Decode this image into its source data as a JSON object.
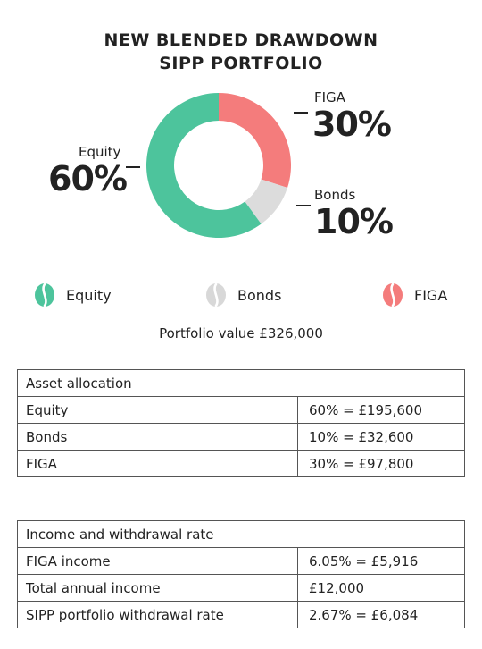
{
  "title_line1": "NEW BLENDED DRAWDOWN",
  "title_line2": "SIPP PORTFOLIO",
  "chart_data": {
    "type": "pie",
    "title": "NEW BLENDED DRAWDOWN SIPP PORTFOLIO",
    "donut": true,
    "slices": [
      {
        "label": "Equity",
        "value": 60,
        "display": "60%",
        "color": "#4dc49c"
      },
      {
        "label": "Bonds",
        "value": 10,
        "display": "10%",
        "color": "#dcdcdc"
      },
      {
        "label": "FIGA",
        "value": 30,
        "display": "30%",
        "color": "#f47c7c"
      }
    ]
  },
  "legend": [
    {
      "label": "Equity",
      "color": "#4dc49c",
      "icon": "bean-icon"
    },
    {
      "label": "Bonds",
      "color": "#d8d8d8",
      "icon": "bean-icon"
    },
    {
      "label": "FIGA",
      "color": "#f47c7c",
      "icon": "bean-icon"
    }
  ],
  "portfolio_value": "Portfolio value £326,000",
  "asset_table": {
    "header": "Asset allocation",
    "rows": [
      {
        "name": "Equity",
        "value": "60% = £195,600"
      },
      {
        "name": "Bonds",
        "value": "10% = £32,600"
      },
      {
        "name": "FIGA",
        "value": "30% = £97,800"
      }
    ]
  },
  "income_table": {
    "header": "Income and withdrawal rate",
    "rows": [
      {
        "name": "FIGA income",
        "value": "6.05% = £5,916"
      },
      {
        "name": "Total annual income",
        "value": "£12,000"
      },
      {
        "name": "SIPP portfolio withdrawal rate",
        "value": "2.67% = £6,084"
      }
    ]
  }
}
